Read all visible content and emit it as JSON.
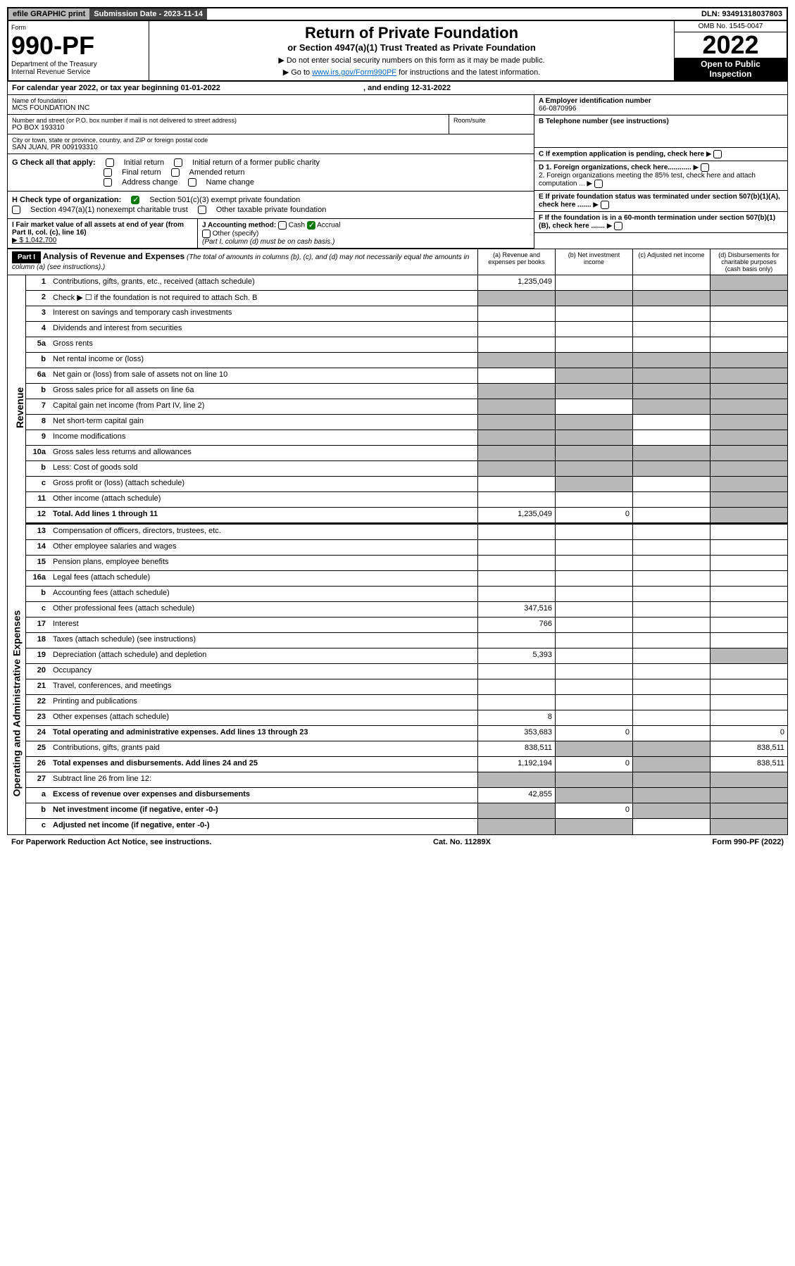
{
  "top": {
    "efile": "efile GRAPHIC print",
    "submission": "Submission Date - 2023-11-14",
    "dln": "DLN: 93491318037803"
  },
  "header": {
    "formLabel": "Form",
    "formNo": "990-PF",
    "dept": "Department of the Treasury",
    "irs": "Internal Revenue Service",
    "title": "Return of Private Foundation",
    "subtitle": "or Section 4947(a)(1) Trust Treated as Private Foundation",
    "instr1": "▶ Do not enter social security numbers on this form as it may be made public.",
    "instr2_pre": "▶ Go to ",
    "instr2_link": "www.irs.gov/Form990PF",
    "instr2_post": " for instructions and the latest information.",
    "omb": "OMB No. 1545-0047",
    "year": "2022",
    "open1": "Open to Public",
    "open2": "Inspection"
  },
  "calyear": {
    "text": "For calendar year 2022, or tax year beginning 01-01-2022",
    "ending": ", and ending 12-31-2022"
  },
  "entity": {
    "nameLabel": "Name of foundation",
    "name": "MCS FOUNDATION INC",
    "addrLabel": "Number and street (or P.O. box number if mail is not delivered to street address)",
    "suiteLabel": "Room/suite",
    "addr": "PO BOX 193310",
    "cityLabel": "City or town, state or province, country, and ZIP or foreign postal code",
    "city": "SAN JUAN, PR  009193310",
    "einLabel": "A Employer identification number",
    "ein": "66-0870996",
    "telLabel": "B Telephone number (see instructions)",
    "cLabel": "C If exemption application is pending, check here",
    "d1": "D 1. Foreign organizations, check here............",
    "d2": "2. Foreign organizations meeting the 85% test, check here and attach computation ...",
    "eLabel": "E If private foundation status was terminated under section 507(b)(1)(A), check here .......",
    "fLabel": "F If the foundation is in a 60-month termination under section 507(b)(1)(B), check here .......",
    "gLabel": "G Check all that apply:",
    "gOpts": [
      "Initial return",
      "Final return",
      "Address change",
      "Initial return of a former public charity",
      "Amended return",
      "Name change"
    ],
    "hLabel": "H Check type of organization:",
    "hOpts": [
      "Section 501(c)(3) exempt private foundation",
      "Section 4947(a)(1) nonexempt charitable trust",
      "Other taxable private foundation"
    ],
    "iLabel": "I Fair market value of all assets at end of year (from Part II, col. (c), line 16)",
    "iValue": "▶ $  1,042,700",
    "jLabel": "J Accounting method:",
    "jOpts": [
      "Cash",
      "Accrual"
    ],
    "jOther": "Other (specify)",
    "jNote": "(Part I, column (d) must be on cash basis.)"
  },
  "part1": {
    "partLabel": "Part I",
    "title": "Analysis of Revenue and Expenses",
    "titleNote": "(The total of amounts in columns (b), (c), and (d) may not necessarily equal the amounts in column (a) (see instructions).)",
    "cols": {
      "a": "(a)  Revenue and expenses per books",
      "b": "(b)  Net investment income",
      "c": "(c)  Adjusted net income",
      "d": "(d)  Disbursements for charitable purposes (cash basis only)"
    }
  },
  "sections": {
    "revenue": "Revenue",
    "expenses": "Operating and Administrative Expenses"
  },
  "lines": [
    {
      "no": "1",
      "desc": "Contributions, gifts, grants, etc., received (attach schedule)",
      "a": "1,235,049",
      "shadeD": true
    },
    {
      "no": "2",
      "desc": "Check ▶ ☐ if the foundation is not required to attach Sch. B",
      "shadeA": true,
      "shadeB": true,
      "shadeC": true,
      "shadeD": true
    },
    {
      "no": "3",
      "desc": "Interest on savings and temporary cash investments"
    },
    {
      "no": "4",
      "desc": "Dividends and interest from securities"
    },
    {
      "no": "5a",
      "desc": "Gross rents"
    },
    {
      "no": "b",
      "desc": "Net rental income or (loss)",
      "shadeA": true,
      "shadeB": true,
      "shadeC": true,
      "shadeD": true
    },
    {
      "no": "6a",
      "desc": "Net gain or (loss) from sale of assets not on line 10",
      "shadeB": true,
      "shadeC": true,
      "shadeD": true
    },
    {
      "no": "b",
      "desc": "Gross sales price for all assets on line 6a",
      "shadeA": true,
      "shadeB": true,
      "shadeC": true,
      "shadeD": true
    },
    {
      "no": "7",
      "desc": "Capital gain net income (from Part IV, line 2)",
      "shadeA": true,
      "shadeC": true,
      "shadeD": true
    },
    {
      "no": "8",
      "desc": "Net short-term capital gain",
      "shadeA": true,
      "shadeB": true,
      "shadeD": true
    },
    {
      "no": "9",
      "desc": "Income modifications",
      "shadeA": true,
      "shadeB": true,
      "shadeD": true
    },
    {
      "no": "10a",
      "desc": "Gross sales less returns and allowances",
      "shadeA": true,
      "shadeB": true,
      "shadeC": true,
      "shadeD": true
    },
    {
      "no": "b",
      "desc": "Less: Cost of goods sold",
      "shadeA": true,
      "shadeB": true,
      "shadeC": true,
      "shadeD": true
    },
    {
      "no": "c",
      "desc": "Gross profit or (loss) (attach schedule)",
      "shadeB": true,
      "shadeD": true
    },
    {
      "no": "11",
      "desc": "Other income (attach schedule)",
      "shadeD": true
    },
    {
      "no": "12",
      "desc": "Total. Add lines 1 through 11",
      "bold": true,
      "a": "1,235,049",
      "b": "0",
      "shadeD": true
    }
  ],
  "expLines": [
    {
      "no": "13",
      "desc": "Compensation of officers, directors, trustees, etc."
    },
    {
      "no": "14",
      "desc": "Other employee salaries and wages"
    },
    {
      "no": "15",
      "desc": "Pension plans, employee benefits"
    },
    {
      "no": "16a",
      "desc": "Legal fees (attach schedule)"
    },
    {
      "no": "b",
      "desc": "Accounting fees (attach schedule)"
    },
    {
      "no": "c",
      "desc": "Other professional fees (attach schedule)",
      "a": "347,516"
    },
    {
      "no": "17",
      "desc": "Interest",
      "a": "766"
    },
    {
      "no": "18",
      "desc": "Taxes (attach schedule) (see instructions)"
    },
    {
      "no": "19",
      "desc": "Depreciation (attach schedule) and depletion",
      "a": "5,393",
      "shadeD": true
    },
    {
      "no": "20",
      "desc": "Occupancy"
    },
    {
      "no": "21",
      "desc": "Travel, conferences, and meetings"
    },
    {
      "no": "22",
      "desc": "Printing and publications"
    },
    {
      "no": "23",
      "desc": "Other expenses (attach schedule)",
      "a": "8"
    },
    {
      "no": "24",
      "desc": "Total operating and administrative expenses. Add lines 13 through 23",
      "bold": true,
      "a": "353,683",
      "b": "0",
      "d": "0"
    },
    {
      "no": "25",
      "desc": "Contributions, gifts, grants paid",
      "a": "838,511",
      "shadeB": true,
      "shadeC": true,
      "d": "838,511"
    },
    {
      "no": "26",
      "desc": "Total expenses and disbursements. Add lines 24 and 25",
      "bold": true,
      "a": "1,192,194",
      "b": "0",
      "shadeC": true,
      "d": "838,511"
    },
    {
      "no": "27",
      "desc": "Subtract line 26 from line 12:",
      "shadeA": true,
      "shadeB": true,
      "shadeC": true,
      "shadeD": true
    },
    {
      "no": "a",
      "desc": "Excess of revenue over expenses and disbursements",
      "bold": true,
      "a": "42,855",
      "shadeB": true,
      "shadeC": true,
      "shadeD": true
    },
    {
      "no": "b",
      "desc": "Net investment income (if negative, enter -0-)",
      "bold": true,
      "shadeA": true,
      "b": "0",
      "shadeC": true,
      "shadeD": true
    },
    {
      "no": "c",
      "desc": "Adjusted net income (if negative, enter -0-)",
      "bold": true,
      "shadeA": true,
      "shadeB": true,
      "shadeD": true
    }
  ],
  "footer": {
    "left": "For Paperwork Reduction Act Notice, see instructions.",
    "mid": "Cat. No. 11289X",
    "right": "Form 990-PF (2022)"
  }
}
